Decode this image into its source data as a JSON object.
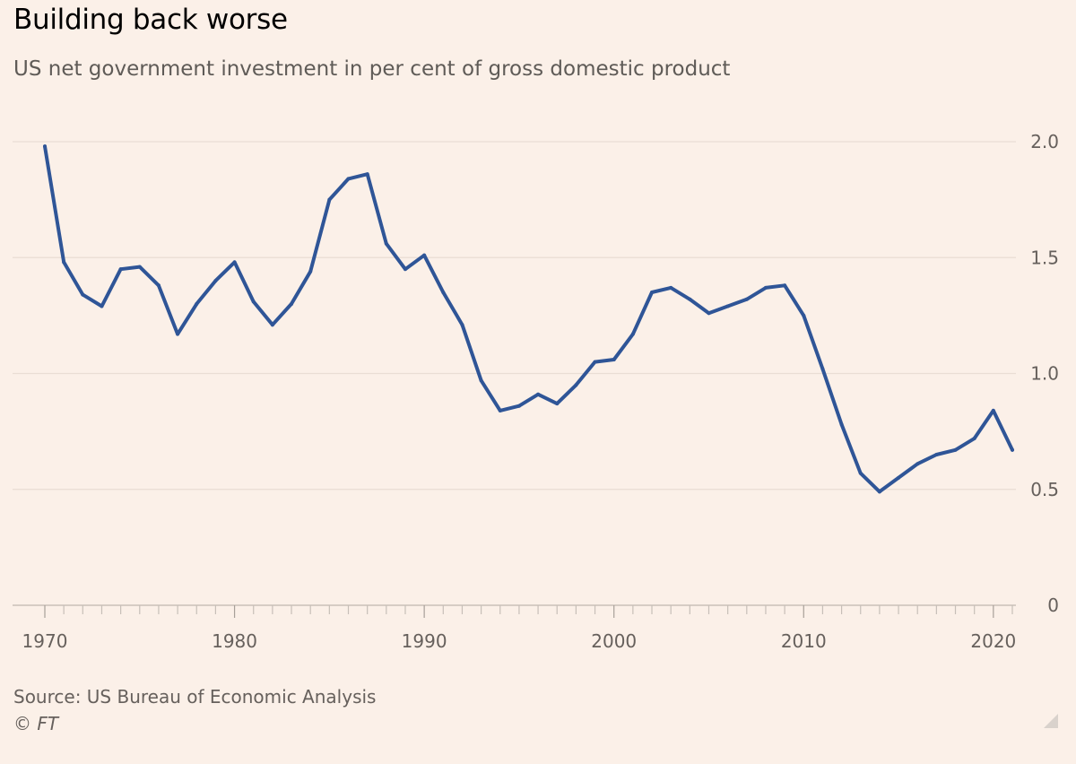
{
  "title": "Building back worse",
  "subtitle": "US net government investment in per cent of gross domestic product",
  "source": "Source: US Bureau of Economic Analysis",
  "copyright": "© FT",
  "colors": {
    "background": "#fbf0e8",
    "line": "#2f5597",
    "grid": "#e9ddd4"
  },
  "chart_data": {
    "type": "line",
    "title": "Building back worse",
    "subtitle": "US net government investment in per cent of gross domestic product",
    "xlabel": "",
    "ylabel": "",
    "xlim": [
      1970,
      2021
    ],
    "ylim": [
      0,
      2.0
    ],
    "y_ticks": [
      0,
      0.5,
      1.0,
      1.5,
      2.0
    ],
    "y_tick_labels": [
      "0",
      "0.5",
      "1.0",
      "1.5",
      "2.0"
    ],
    "x_ticks": [
      1970,
      1980,
      1990,
      2000,
      2010,
      2020
    ],
    "x_tick_labels": [
      "1970",
      "1980",
      "1990",
      "2000",
      "2010",
      "2020"
    ],
    "y_axis_side": "right",
    "grid": true,
    "series": [
      {
        "x": [
          1970,
          1971,
          1972,
          1973,
          1974,
          1975,
          1976,
          1977,
          1978,
          1979,
          1980,
          1981,
          1982,
          1983,
          1984,
          1985,
          1986,
          1987,
          1988,
          1989,
          1990,
          1991,
          1992,
          1993,
          1994,
          1995,
          1996,
          1997,
          1998,
          1999,
          2000,
          2001,
          2002,
          2003,
          2004,
          2005,
          2006,
          2007,
          2008,
          2009,
          2010,
          2011,
          2012,
          2013,
          2014,
          2015,
          2016,
          2017,
          2018,
          2019,
          2020,
          2021
        ],
        "values": [
          1.98,
          1.48,
          1.34,
          1.29,
          1.45,
          1.46,
          1.38,
          1.17,
          1.3,
          1.4,
          1.48,
          1.31,
          1.21,
          1.3,
          1.44,
          1.75,
          1.84,
          1.86,
          1.56,
          1.45,
          1.51,
          1.35,
          1.21,
          0.97,
          0.84,
          0.86,
          0.91,
          0.87,
          0.95,
          1.05,
          1.06,
          1.17,
          1.35,
          1.37,
          1.32,
          1.26,
          1.29,
          1.32,
          1.37,
          1.38,
          1.25,
          1.02,
          0.78,
          0.57,
          0.49,
          0.55,
          0.61,
          0.65,
          0.67,
          0.72,
          0.84,
          0.67
        ]
      }
    ]
  }
}
